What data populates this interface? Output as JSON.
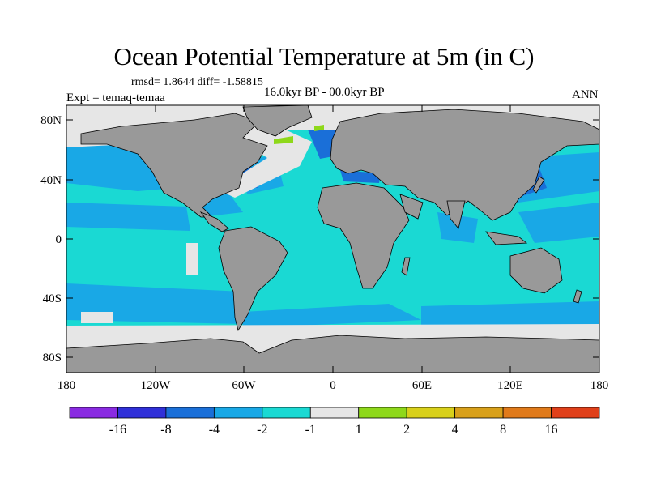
{
  "title": "Ocean Potential Temperature at 5m (in C)",
  "stats": "rmsd= 1.8644  diff= -1.58815",
  "experiment": "Expt = temaq-temaa",
  "period": "16.0kyr BP - 00.0kyr BP",
  "season": "ANN",
  "colors": {
    "land": "#999999",
    "coastline": "#000000",
    "neutral": "#e6e6e6"
  },
  "axes": {
    "lat_ticks": [
      "80N",
      "40N",
      "0",
      "40S",
      "80S"
    ],
    "lon_ticks": [
      "180",
      "120W",
      "60W",
      "0",
      "60E",
      "120E",
      "180"
    ]
  },
  "colorbar": {
    "colors": [
      "#8a2be2",
      "#3030d8",
      "#1a6fd8",
      "#19a8e6",
      "#1ad9d3",
      "#e6e6e6",
      "#8ed81a",
      "#d8d01a",
      "#d8a01a",
      "#e07a1a",
      "#e0401a"
    ],
    "labels": [
      "-16",
      "-8",
      "-4",
      "-2",
      "-1",
      "1",
      "2",
      "4",
      "8",
      "16"
    ]
  }
}
